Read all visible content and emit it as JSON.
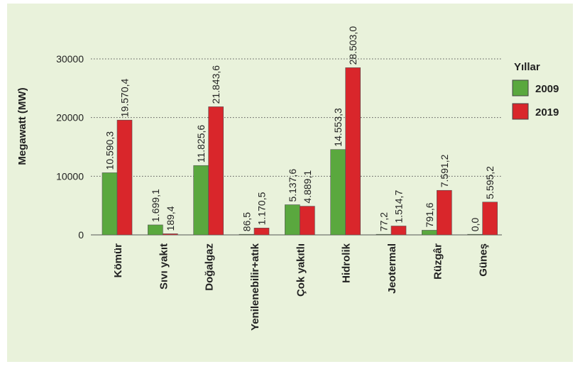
{
  "chart_data": {
    "type": "bar",
    "ylabel": "Megawatt (MW)",
    "ylim": [
      0,
      30000
    ],
    "yticks": [
      "0",
      "10000",
      "20000",
      "30000"
    ],
    "grid": true,
    "legend_position": "right",
    "legend_title": "Yıllar",
    "categories": [
      "Kömür",
      "Sıvı yakıt",
      "Doğalgaz",
      "Yenilenebilir+atık",
      "Çok yakıtlı",
      "Hidrolik",
      "Jeotermal",
      "Rüzgâr",
      "Güneş"
    ],
    "series": [
      {
        "name": "2009",
        "color": "#5aa83e",
        "values": [
          10590.3,
          1699.1,
          11825.6,
          86.5,
          5137.6,
          14553.3,
          77.2,
          791.6,
          0.0
        ],
        "labels": [
          "10.590,3",
          "1.699,1",
          "11.825,6",
          "86,5",
          "5.137,6",
          "14.553,3",
          "77,2",
          "791,6",
          "0,0"
        ]
      },
      {
        "name": "2019",
        "color": "#d9262b",
        "values": [
          19570.4,
          189.4,
          21843.6,
          1170.5,
          4889.1,
          28503.0,
          1514.7,
          7591.2,
          5595.2
        ],
        "labels": [
          "19.570,4",
          "189,4",
          "21.843,6",
          "1.170,5",
          "4.889,1",
          "28.503,0",
          "1.514,7",
          "7.591,2",
          "5.595,2"
        ]
      }
    ]
  }
}
